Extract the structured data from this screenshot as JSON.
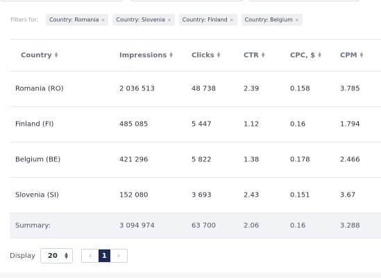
{
  "filters": {
    "label": "Filters for:",
    "chips": [
      {
        "label": "Country: Romania",
        "remove": "×"
      },
      {
        "label": "Country: Slovenia",
        "remove": "×"
      },
      {
        "label": "Country: Finland",
        "remove": "×"
      },
      {
        "label": "Country: Belgium",
        "remove": "×"
      }
    ]
  },
  "table": {
    "columns": [
      "Country",
      "Impressions",
      "Clicks",
      "CTR",
      "CPC, $",
      "CPM"
    ],
    "rows": [
      [
        "Romania (RO)",
        "2 036 513",
        "48 738",
        "2.39",
        "0.158",
        "3.785"
      ],
      [
        "Finland (FI)",
        "485 085",
        "5 447",
        "1.12",
        "0.16",
        "1.794"
      ],
      [
        "Belgium (BE)",
        "421 296",
        "5 822",
        "1.38",
        "0.178",
        "2.466"
      ],
      [
        "Slovenia (SI)",
        "152 080",
        "3 693",
        "2.43",
        "0.151",
        "3.67"
      ]
    ],
    "summary": [
      "Summary:",
      "3 094 974",
      "63 700",
      "2.06",
      "0.16",
      "3.288"
    ]
  },
  "footer": {
    "display_label": "Display",
    "page_size": "20",
    "prev": "‹",
    "current_page": "1",
    "next": "›"
  }
}
